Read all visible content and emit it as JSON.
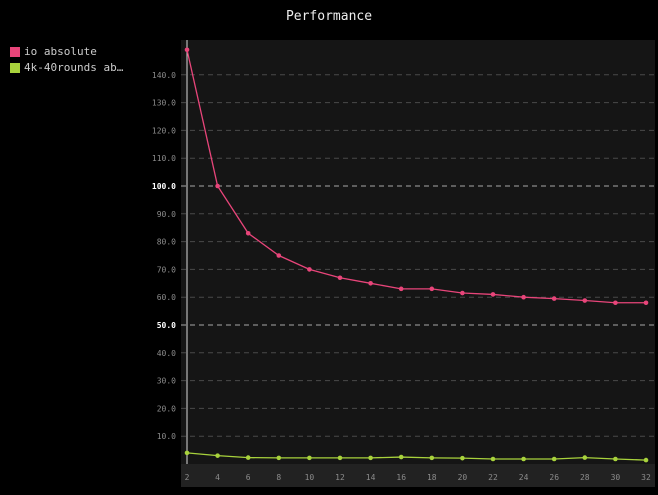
{
  "chart_data": {
    "type": "line",
    "title": "Performance",
    "xlabel": "",
    "ylabel": "",
    "x": [
      2,
      4,
      6,
      8,
      10,
      12,
      14,
      16,
      18,
      20,
      22,
      24,
      26,
      28,
      30,
      32
    ],
    "xlim": [
      2,
      32
    ],
    "ylim": [
      0,
      150
    ],
    "y_ticks": [
      10,
      20,
      30,
      40,
      50,
      60,
      70,
      80,
      90,
      100,
      110,
      120,
      130,
      140
    ],
    "y_tick_labels": [
      "10.0",
      "20.0",
      "30.0",
      "40.0",
      "50.0",
      "60.0",
      "70.0",
      "80.0",
      "90.0",
      "100.0",
      "110.0",
      "120.0",
      "130.0",
      "140.0"
    ],
    "highlighted_y_ticks": [
      50,
      100
    ],
    "x_tick_labels": [
      "2",
      "4",
      "6",
      "8",
      "10",
      "12",
      "14",
      "16",
      "18",
      "20",
      "22",
      "24",
      "26",
      "28",
      "30",
      "32"
    ],
    "grid": true,
    "legend_position": "top-left",
    "series": [
      {
        "name": "io absolute",
        "color": "#e8457a",
        "values": [
          149,
          100,
          83,
          75,
          70,
          67,
          65,
          63,
          63,
          61.5,
          61,
          60,
          59.5,
          58.8,
          58,
          58
        ]
      },
      {
        "name": "4k-40rounds ab…",
        "color": "#a8d23c",
        "values": [
          4,
          3,
          2.3,
          2.2,
          2.2,
          2.2,
          2.2,
          2.5,
          2.2,
          2.1,
          1.8,
          1.8,
          1.8,
          2.3,
          1.8,
          1.4
        ]
      }
    ]
  }
}
